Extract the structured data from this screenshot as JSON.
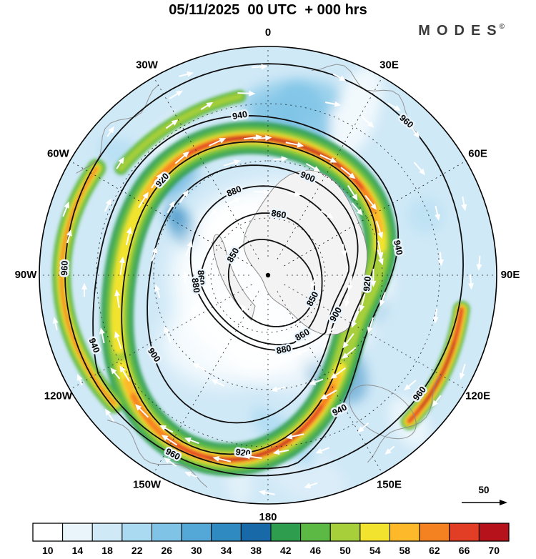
{
  "header": {
    "title": "05/11/2025  00 UTC  + 000 hrs",
    "brand": "MODES",
    "brand_mark": "©"
  },
  "chart_data": {
    "type": "heatmap",
    "title": "05/11/2025  00 UTC  + 000 hrs",
    "description": "South polar stereographic map of wind speed (shaded), height contours (black lines) and wind direction arrows (white)",
    "projection": "polar_stereographic_south",
    "longitude_labels": [
      {
        "label": "0",
        "azimuth_deg": 0
      },
      {
        "label": "30E",
        "azimuth_deg": 30
      },
      {
        "label": "60E",
        "azimuth_deg": 60
      },
      {
        "label": "90E",
        "azimuth_deg": 90
      },
      {
        "label": "120E",
        "azimuth_deg": 120
      },
      {
        "label": "150E",
        "azimuth_deg": 150
      },
      {
        "label": "180",
        "azimuth_deg": 180
      },
      {
        "label": "150W",
        "azimuth_deg": 210
      },
      {
        "label": "120W",
        "azimuth_deg": 240
      },
      {
        "label": "90W",
        "azimuth_deg": 270
      },
      {
        "label": "60W",
        "azimuth_deg": 300
      },
      {
        "label": "30W",
        "azimuth_deg": 330
      }
    ],
    "contour_labels": [
      850,
      860,
      880,
      900,
      920,
      940,
      960
    ],
    "colorbar": {
      "orientation": "horizontal",
      "tick_labels": [
        10,
        14,
        18,
        22,
        26,
        30,
        34,
        38,
        42,
        46,
        50,
        54,
        58,
        62,
        66,
        70
      ],
      "colors": [
        "#ffffff",
        "#e9f4fb",
        "#d0e9f7",
        "#aadaf1",
        "#7fc3e6",
        "#54a8d8",
        "#2f8ac2",
        "#1769a8",
        "#2e9d4e",
        "#5cb944",
        "#a6cf3a",
        "#f2e32f",
        "#fdb92a",
        "#f58220",
        "#e23d25",
        "#b5121b"
      ]
    },
    "reference_arrow_label": "50",
    "graticule": {
      "meridian_step_deg": 30,
      "style": "dashed"
    },
    "pole_marker": true
  }
}
